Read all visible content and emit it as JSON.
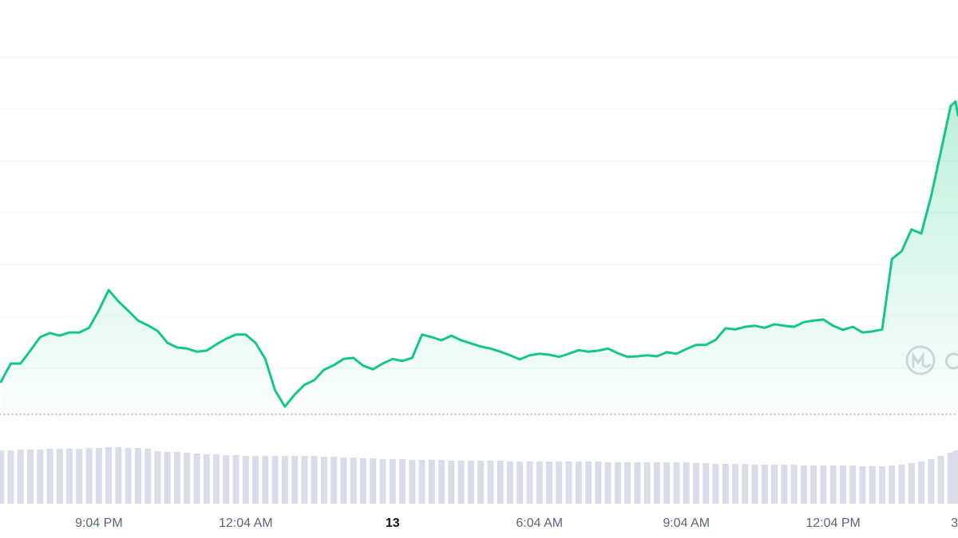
{
  "chart_data": {
    "type": "line",
    "x": [
      -2,
      -1.8,
      -1.6,
      -1.4,
      -1.2,
      -1,
      -0.8,
      -0.6,
      -0.4,
      -0.2,
      0,
      0.2,
      0.4,
      0.6,
      0.8,
      1,
      1.2,
      1.4,
      1.6,
      1.8,
      2,
      2.2,
      2.4,
      2.6,
      2.8,
      3,
      3.2,
      3.4,
      3.6,
      3.8,
      4,
      4.2,
      4.4,
      4.6,
      4.8,
      5,
      5.2,
      5.4,
      5.6,
      5.8,
      6,
      6.2,
      6.4,
      6.6,
      6.8,
      7,
      7.2,
      7.4,
      7.6,
      7.8,
      8,
      8.2,
      8.4,
      8.6,
      8.8,
      9,
      9.2,
      9.4,
      9.6,
      9.8,
      10,
      10.2,
      10.4,
      10.6,
      10.8,
      11,
      11.2,
      11.4,
      11.6,
      11.8,
      12,
      12.2,
      12.4,
      12.6,
      12.8,
      13,
      13.2,
      13.4,
      13.6,
      13.8,
      14,
      14.2,
      14.4,
      14.6,
      14.8,
      15,
      15.2,
      15.4,
      15.6,
      15.8,
      16,
      16.2,
      16.4,
      16.6,
      16.8,
      17,
      17.2,
      17.4,
      17.5,
      17.55
    ],
    "values": [
      7.4,
      10.9,
      10.9,
      13.4,
      16.0,
      16.8,
      16.3,
      16.9,
      16.9,
      17.8,
      21.2,
      25.1,
      22.9,
      21.1,
      19.2,
      18.3,
      17.2,
      14.9,
      14.0,
      13.8,
      13.2,
      13.4,
      14.6,
      15.7,
      16.5,
      16.5,
      14.9,
      11.8,
      5.7,
      2.6,
      4.9,
      6.8,
      7.7,
      9.7,
      10.6,
      11.8,
      12.0,
      10.5,
      9.8,
      10.9,
      11.8,
      11.4,
      12.0,
      16.5,
      16.0,
      15.4,
      16.3,
      15.4,
      14.8,
      14.2,
      13.8,
      13.2,
      12.5,
      11.7,
      12.5,
      12.8,
      12.6,
      12.2,
      12.8,
      13.5,
      13.2,
      13.4,
      13.8,
      12.9,
      12.2,
      12.3,
      12.5,
      12.3,
      13.1,
      12.8,
      13.7,
      14.5,
      14.5,
      15.5,
      17.7,
      17.5,
      18.0,
      18.2,
      17.8,
      18.5,
      18.2,
      18.0,
      18.9,
      19.2,
      19.4,
      18.2,
      17.4,
      18.0,
      16.9,
      17.1,
      17.5,
      31.1,
      32.6,
      36.8,
      36.0,
      43.2,
      51.8,
      60.6,
      61.5,
      58.8
    ],
    "color": "#16c784",
    "volume": [
      67,
      67,
      68,
      68,
      68,
      69,
      69,
      69,
      69,
      70,
      70,
      71,
      71,
      70,
      70,
      69,
      66,
      65,
      65,
      64,
      63,
      62,
      62,
      61,
      61,
      60,
      60,
      60,
      60,
      60,
      60,
      60,
      60,
      59,
      59,
      58,
      58,
      57,
      57,
      56,
      56,
      56,
      55,
      55,
      55,
      55,
      54,
      54,
      54,
      54,
      54,
      54,
      53,
      53,
      53,
      53,
      53,
      53,
      53,
      53,
      53,
      53,
      52,
      52,
      52,
      52,
      52,
      52,
      52,
      52,
      52,
      51,
      51,
      50,
      50,
      50,
      50,
      49,
      49,
      49,
      49,
      49,
      48,
      48,
      48,
      48,
      48,
      48,
      47,
      47,
      47,
      48,
      49,
      51,
      53,
      56,
      60,
      64,
      66,
      67
    ],
    "volume_color": "#d9dce9",
    "volume_lim": [
      0,
      100
    ],
    "baseline": 1.1,
    "xlim": [
      -2.02,
      17.55
    ],
    "ylim": [
      0,
      78
    ],
    "yticks": [
      10,
      20,
      30,
      40,
      50,
      60,
      70
    ],
    "grid": true,
    "xticks": [
      {
        "value": 0,
        "label": "9:04 PM"
      },
      {
        "value": 3,
        "label": "12:04 AM"
      },
      {
        "value": 6,
        "label": "13",
        "bold": true
      },
      {
        "value": 9,
        "label": "6:04 AM"
      },
      {
        "value": 12,
        "label": "9:04 AM"
      },
      {
        "value": 15,
        "label": "12:04 PM"
      },
      {
        "value": 18,
        "label": "3"
      }
    ]
  }
}
